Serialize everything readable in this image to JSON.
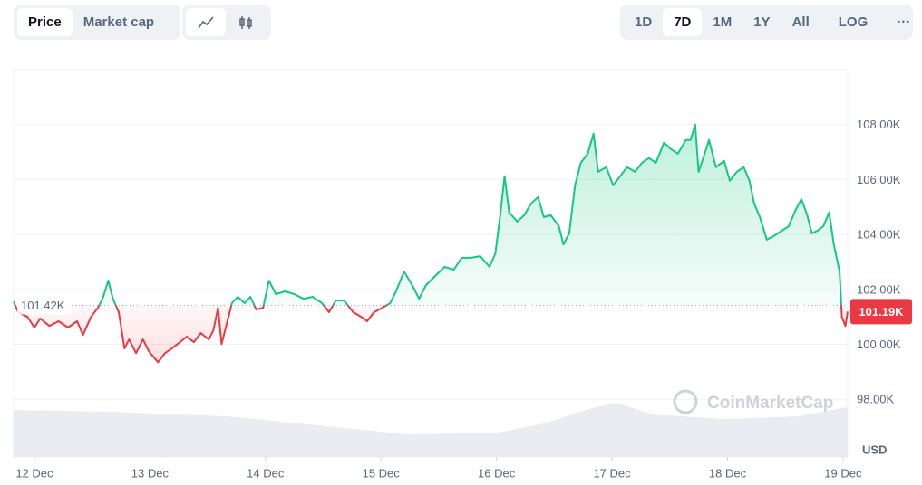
{
  "toolbar": {
    "tabs": [
      "Price",
      "Market cap"
    ],
    "active_tab": "Price",
    "ranges": [
      "1D",
      "7D",
      "1M",
      "1Y",
      "All"
    ],
    "active_range": "7D",
    "log": "LOG",
    "more": "···"
  },
  "chart_data": {
    "type": "line",
    "watermark": "CoinMarketCap",
    "y_unit_label": "USD",
    "x": [
      -0.18,
      -0.14,
      -0.06,
      0,
      0.05,
      0.13,
      0.21,
      0.29,
      0.37,
      0.42,
      0.49,
      0.55,
      0.59,
      0.64,
      0.68,
      0.73,
      0.78,
      0.82,
      0.88,
      0.94,
      0.99,
      1.07,
      1.13,
      1.19,
      1.26,
      1.32,
      1.38,
      1.44,
      1.51,
      1.55,
      1.59,
      1.62,
      1.66,
      1.71,
      1.76,
      1.82,
      1.87,
      1.92,
      1.98,
      2.03,
      2.09,
      2.17,
      2.25,
      2.33,
      2.41,
      2.49,
      2.55,
      2.61,
      2.68,
      2.76,
      2.83,
      2.88,
      2.94,
      3.01,
      3.08,
      3.13,
      3.2,
      3.27,
      3.33,
      3.39,
      3.47,
      3.55,
      3.63,
      3.7,
      3.78,
      3.86,
      3.94,
      3.99,
      4.03,
      4.07,
      4.11,
      4.18,
      4.24,
      4.3,
      4.36,
      4.41,
      4.47,
      4.54,
      4.58,
      4.63,
      4.68,
      4.73,
      4.79,
      4.84,
      4.88,
      4.95,
      5.01,
      5.07,
      5.13,
      5.2,
      5.26,
      5.32,
      5.38,
      5.45,
      5.51,
      5.57,
      5.64,
      5.68,
      5.72,
      5.75,
      5.79,
      5.84,
      5.9,
      5.97,
      6.02,
      6.08,
      6.14,
      6.19,
      6.23,
      6.28,
      6.34,
      6.41,
      6.47,
      6.53,
      6.59,
      6.64,
      6.69,
      6.73,
      6.78,
      6.83,
      6.88,
      6.92,
      6.97,
      6.99,
      7.02,
      7.04
    ],
    "series": [
      {
        "name": "Price",
        "color": "#16c784",
        "color_below": "#ea3943",
        "values": [
          101560,
          101170,
          101000,
          100610,
          100940,
          100670,
          100840,
          100610,
          100840,
          100340,
          101000,
          101330,
          101660,
          102320,
          101660,
          101170,
          99850,
          100180,
          99680,
          100180,
          99750,
          99350,
          99680,
          99850,
          100080,
          100280,
          100080,
          100410,
          100180,
          100510,
          101330,
          100010,
          100670,
          101500,
          101730,
          101500,
          101730,
          101270,
          101330,
          102320,
          101830,
          101930,
          101830,
          101660,
          101730,
          101500,
          101170,
          101600,
          101600,
          101170,
          101000,
          100840,
          101170,
          101330,
          101500,
          101930,
          102650,
          102160,
          101660,
          102160,
          102490,
          102820,
          102720,
          103150,
          103150,
          103210,
          102820,
          103310,
          104630,
          106120,
          104800,
          104470,
          104700,
          105130,
          105360,
          104630,
          104700,
          104300,
          103640,
          104040,
          105790,
          106610,
          106940,
          107670,
          106280,
          106450,
          105790,
          106120,
          106450,
          106280,
          106610,
          106780,
          106610,
          107340,
          107110,
          106940,
          107440,
          107440,
          108000,
          106280,
          106780,
          107440,
          106450,
          106680,
          105950,
          106280,
          106450,
          105950,
          105130,
          104630,
          103810,
          103970,
          104140,
          104300,
          104900,
          105290,
          104700,
          104040,
          104140,
          104300,
          104800,
          103640,
          102650,
          101000,
          100670,
          101190
        ]
      }
    ],
    "reference": {
      "value": 101420,
      "label": "101.42K"
    },
    "last_price": {
      "value": 101190,
      "label": "101.19K"
    },
    "xlim": [
      -0.18,
      7.04
    ],
    "xticks": [
      {
        "value": 0,
        "label": "12 Dec"
      },
      {
        "value": 1,
        "label": "13 Dec"
      },
      {
        "value": 2,
        "label": "14 Dec"
      },
      {
        "value": 3,
        "label": "15 Dec"
      },
      {
        "value": 4,
        "label": "16 Dec"
      },
      {
        "value": 5,
        "label": "17 Dec"
      },
      {
        "value": 6,
        "label": "18 Dec"
      },
      {
        "value": 7,
        "label": "19 Dec"
      }
    ],
    "ylim": [
      95900,
      110000
    ],
    "yticks": [
      {
        "value": 98000,
        "label": "98.00K"
      },
      {
        "value": 100000,
        "label": "100.00K"
      },
      {
        "value": 102000,
        "label": "102.00K"
      },
      {
        "value": 104000,
        "label": "104.00K"
      },
      {
        "value": 106000,
        "label": "106.00K"
      },
      {
        "value": 108000,
        "label": "108.00K"
      }
    ],
    "grid": true
  }
}
